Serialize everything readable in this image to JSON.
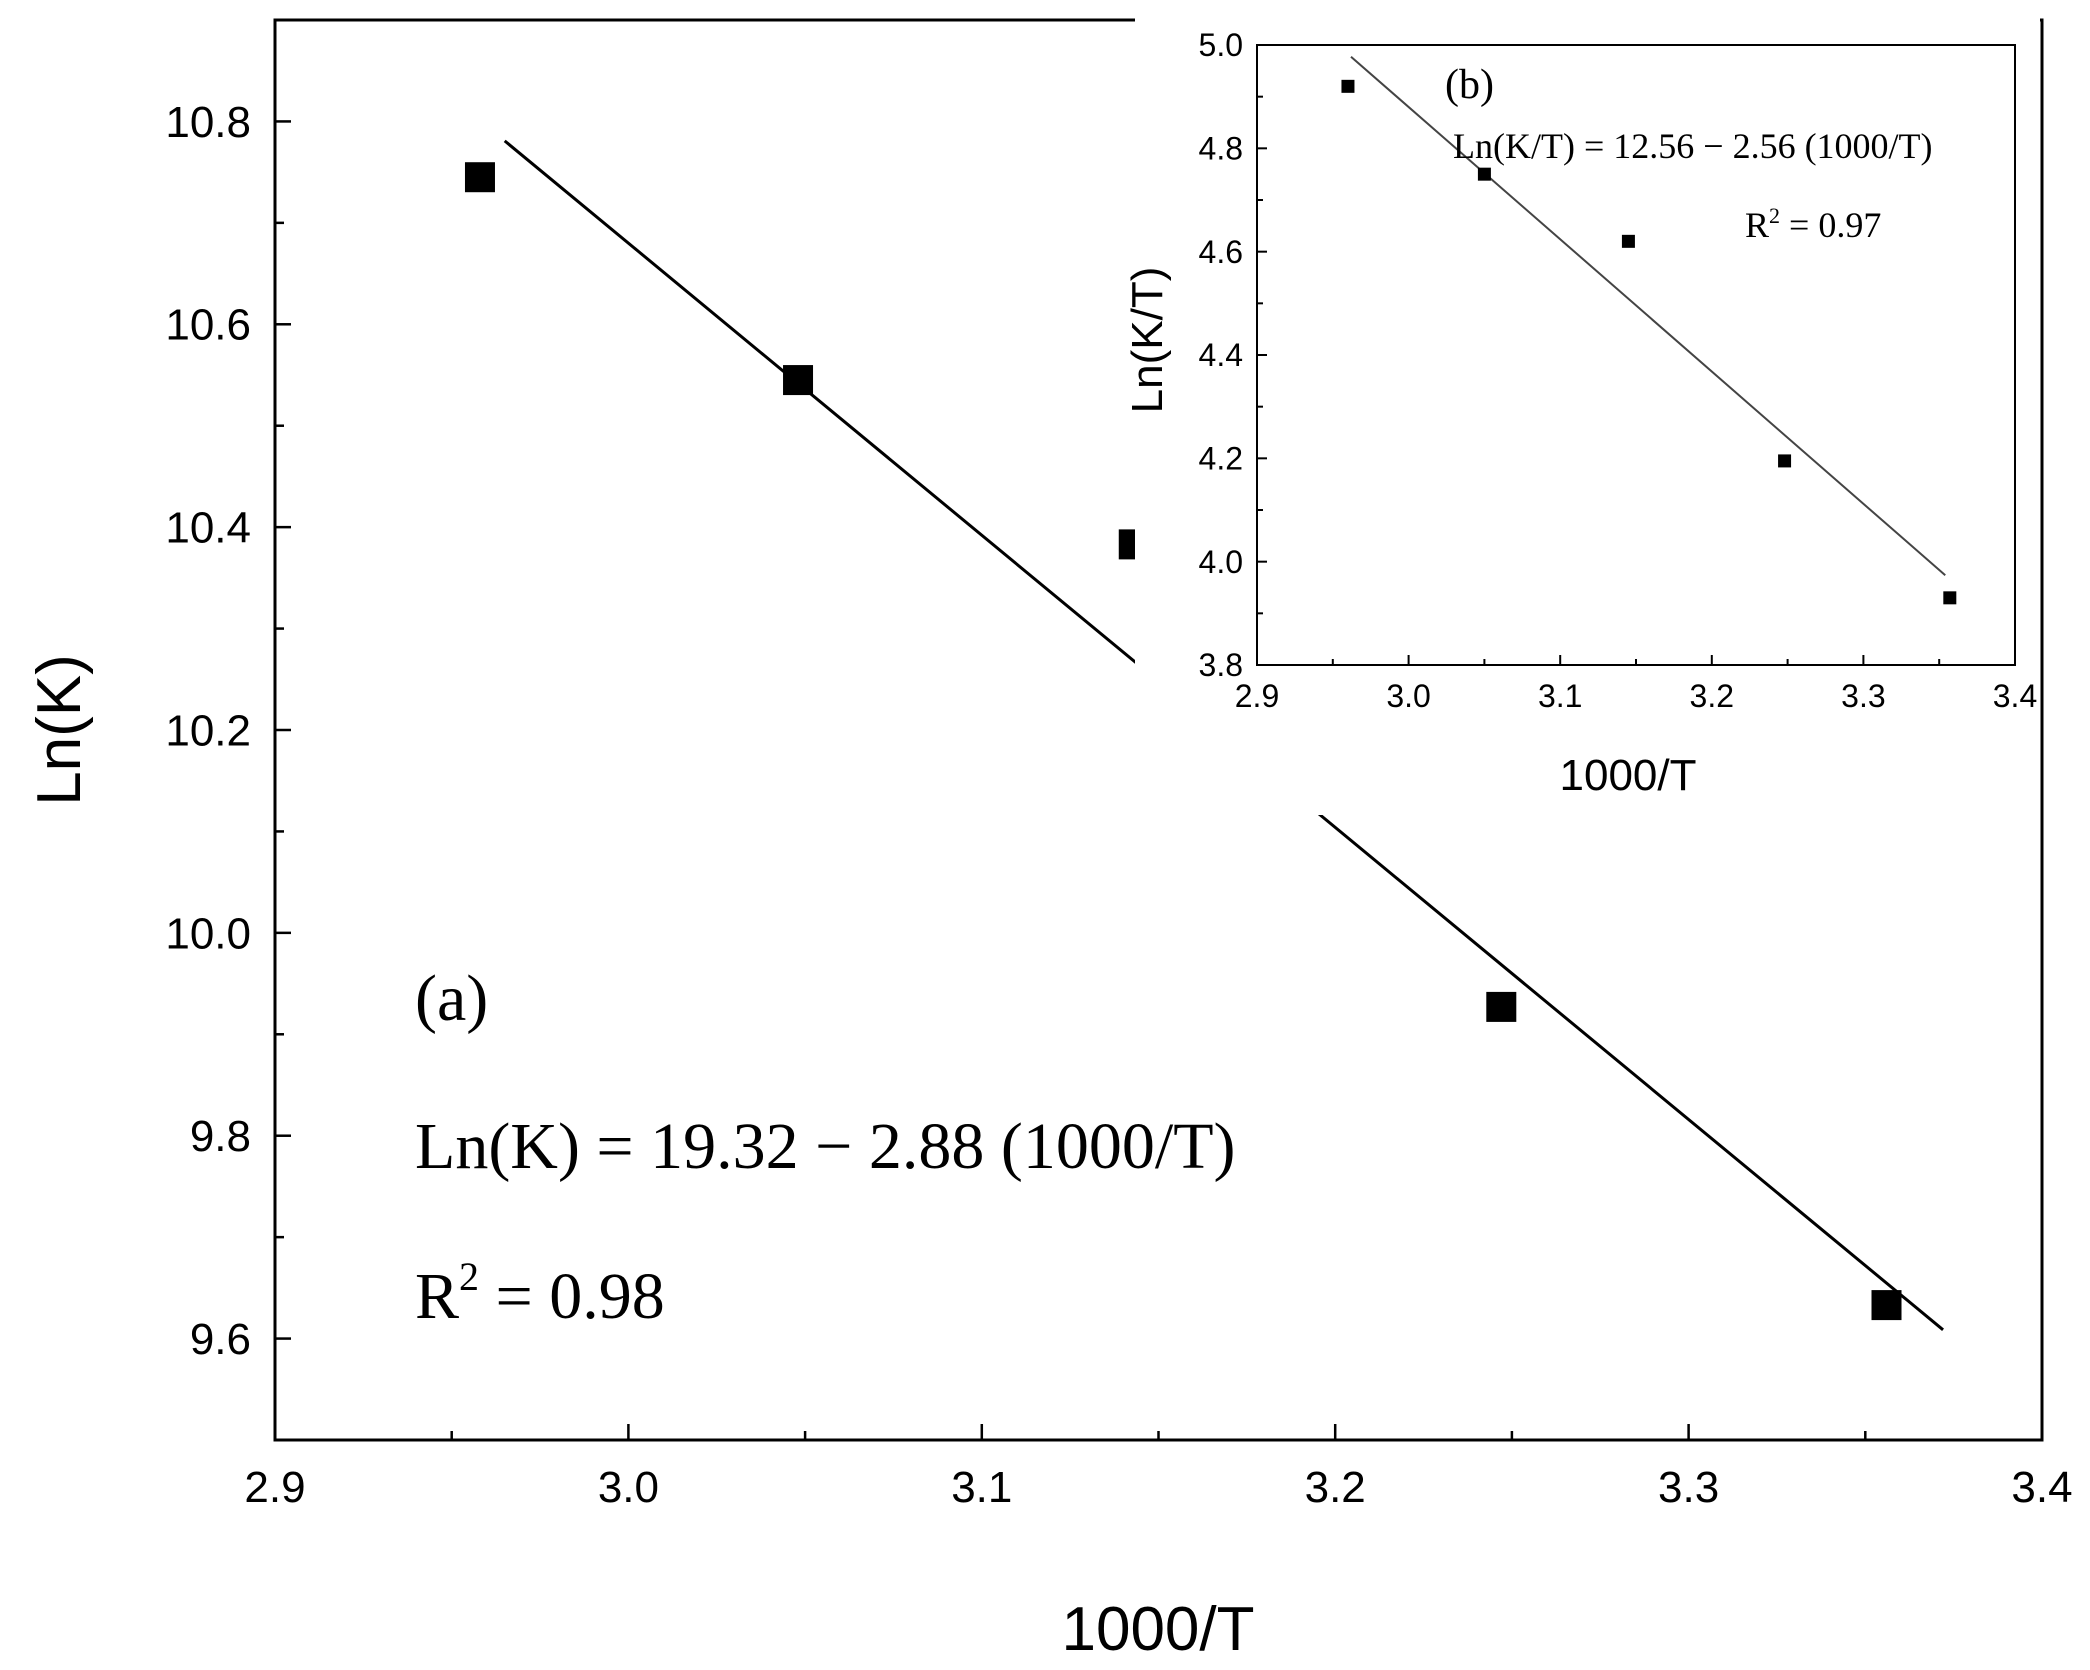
{
  "chart_data": [
    {
      "type": "scatter",
      "panel_label": "(a)",
      "xlabel": "1000/T",
      "ylabel": "Ln(K)",
      "xlim": [
        2.9,
        3.4
      ],
      "ylim": [
        9.5,
        10.9
      ],
      "xticks": [
        2.9,
        3.0,
        3.1,
        3.2,
        3.3,
        3.4
      ],
      "xtick_labels": [
        "2.9",
        "3.0",
        "3.1",
        "3.2",
        "3.3",
        "3.4"
      ],
      "yticks": [
        9.6,
        9.8,
        10.0,
        10.2,
        10.4,
        10.6,
        10.8
      ],
      "ytick_labels": [
        "9.6",
        "9.8",
        "10.0",
        "10.2",
        "10.4",
        "10.6",
        "10.8"
      ],
      "grid": false,
      "legend": "none",
      "series": [
        {
          "marker": "square",
          "color": "#000000",
          "x": [
            2.958,
            3.048,
            3.143,
            3.247,
            3.356
          ],
          "y": [
            10.745,
            10.545,
            10.383,
            9.927,
            9.633
          ]
        }
      ],
      "fit_line": {
        "intercept": 19.32,
        "slope": -2.88,
        "x_range": [
          2.965,
          3.372
        ],
        "color": "#000000"
      },
      "annotations": {
        "equation": "Ln(K) = 19.32 − 2.88 (1000/T)",
        "r2_prefix": "R",
        "r2_superscript": "2",
        "r2_value": " = 0.98"
      }
    },
    {
      "type": "scatter",
      "panel_label": "(b)",
      "xlabel": "1000/T",
      "ylabel": "Ln(K/T)",
      "xlim": [
        2.9,
        3.4
      ],
      "ylim": [
        3.8,
        5.0
      ],
      "xticks": [
        2.9,
        3.0,
        3.1,
        3.2,
        3.3,
        3.4
      ],
      "xtick_labels": [
        "2.9",
        "3.0",
        "3.1",
        "3.2",
        "3.3",
        "3.4"
      ],
      "yticks": [
        3.8,
        4.0,
        4.2,
        4.4,
        4.6,
        4.8,
        5.0
      ],
      "ytick_labels": [
        "3.8",
        "4.0",
        "4.2",
        "4.4",
        "4.6",
        "4.8",
        "5.0"
      ],
      "grid": false,
      "legend": "none",
      "series": [
        {
          "marker": "square",
          "color": "#000000",
          "x": [
            2.96,
            3.05,
            3.145,
            3.248,
            3.357
          ],
          "y": [
            4.92,
            4.75,
            4.62,
            4.195,
            3.93
          ]
        }
      ],
      "fit_line": {
        "intercept": 12.56,
        "slope": -2.56,
        "x_range": [
          2.962,
          3.354
        ],
        "color": "#444444"
      },
      "annotations": {
        "equation": "Ln(K/T) = 12.56 − 2.56 (1000/T)",
        "r2_prefix": "R",
        "r2_superscript": "2",
        "r2_value": " = 0.97"
      }
    }
  ]
}
